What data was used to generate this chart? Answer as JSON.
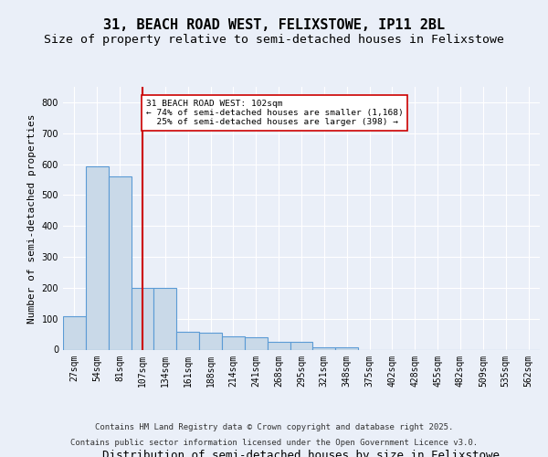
{
  "title": "31, BEACH ROAD WEST, FELIXSTOWE, IP11 2BL",
  "subtitle": "Size of property relative to semi-detached houses in Felixstowe",
  "xlabel": "Distribution of semi-detached houses by size in Felixstowe",
  "ylabel": "Number of semi-detached properties",
  "bin_labels": [
    "27sqm",
    "54sqm",
    "81sqm",
    "107sqm",
    "134sqm",
    "161sqm",
    "188sqm",
    "214sqm",
    "241sqm",
    "268sqm",
    "295sqm",
    "321sqm",
    "348sqm",
    "375sqm",
    "402sqm",
    "428sqm",
    "455sqm",
    "482sqm",
    "509sqm",
    "535sqm",
    "562sqm"
  ],
  "bar_values": [
    107,
    592,
    560,
    200,
    200,
    57,
    55,
    43,
    40,
    26,
    26,
    8,
    8,
    0,
    0,
    0,
    0,
    0,
    0,
    0,
    0
  ],
  "bar_color": "#c9d9e8",
  "bar_edge_color": "#5b9bd5",
  "property_line_x": 3.0,
  "property_line_color": "#cc0000",
  "annotation_text": "31 BEACH ROAD WEST: 102sqm\n← 74% of semi-detached houses are smaller (1,168)\n  25% of semi-detached houses are larger (398) →",
  "annotation_box_color": "#ffffff",
  "annotation_box_edge": "#cc0000",
  "ylim": [
    0,
    850
  ],
  "yticks": [
    0,
    100,
    200,
    300,
    400,
    500,
    600,
    700,
    800
  ],
  "background_color": "#eaeff8",
  "plot_bg_color": "#eaeff8",
  "footer_line1": "Contains HM Land Registry data © Crown copyright and database right 2025.",
  "footer_line2": "Contains public sector information licensed under the Open Government Licence v3.0.",
  "title_fontsize": 11,
  "subtitle_fontsize": 9.5,
  "tick_fontsize": 7,
  "xlabel_fontsize": 9,
  "ylabel_fontsize": 8,
  "annotation_fontsize": 6.8,
  "footer_fontsize": 6.5
}
